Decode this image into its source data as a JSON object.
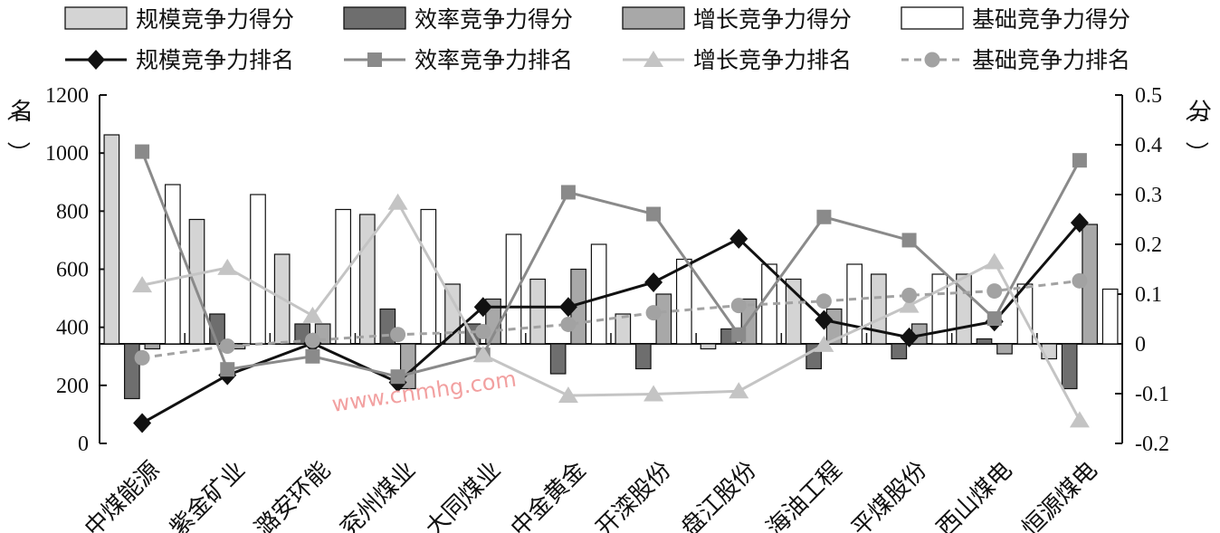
{
  "chart_data": {
    "type": "bar+line",
    "categories": [
      "中煤能源",
      "紫金矿业",
      "潞安环能",
      "兖州煤业",
      "大同煤业",
      "中金黄金",
      "开滦股份",
      "盘江股份",
      "海油工程",
      "平煤股份",
      "西山煤电",
      "恒源煤电"
    ],
    "bar_series": [
      {
        "name": "规模竞争力得分",
        "color": "#d4d4d4",
        "values": [
          0.42,
          0.25,
          0.18,
          0.26,
          0.12,
          0.13,
          0.06,
          -0.01,
          0.13,
          0.14,
          0.14,
          -0.03
        ]
      },
      {
        "name": "效率竞争力得分",
        "color": "#6e6e6e",
        "values": [
          -0.11,
          0.06,
          0.04,
          0.07,
          0.04,
          -0.06,
          -0.05,
          0.03,
          -0.05,
          -0.03,
          0.01,
          -0.09
        ]
      },
      {
        "name": "增长竞争力得分",
        "color": "#a8a8a8",
        "values": [
          -0.01,
          -0.01,
          0.04,
          -0.09,
          0.09,
          0.15,
          0.1,
          0.09,
          0.07,
          0.04,
          -0.02,
          0.24
        ]
      },
      {
        "name": "基础竞争力得分",
        "color": "#ffffff",
        "values": [
          0.32,
          0.3,
          0.27,
          0.27,
          0.22,
          0.2,
          0.17,
          0.16,
          0.16,
          0.14,
          0.12,
          0.11
        ]
      }
    ],
    "line_series": [
      {
        "name": "规模竞争力排名",
        "color": "#111111",
        "marker": "diamond",
        "dash": "",
        "values": [
          70,
          235,
          345,
          210,
          470,
          470,
          555,
          705,
          425,
          365,
          420,
          760
        ]
      },
      {
        "name": "效率竞争力排名",
        "color": "#8a8a8a",
        "marker": "square",
        "dash": "",
        "values": [
          1005,
          255,
          300,
          230,
          305,
          865,
          790,
          375,
          780,
          700,
          430,
          975
        ]
      },
      {
        "name": "增长竞争力排名",
        "color": "#c4c4c4",
        "marker": "triangle",
        "dash": "",
        "values": [
          545,
          605,
          440,
          830,
          305,
          165,
          170,
          180,
          340,
          475,
          625,
          80
        ]
      },
      {
        "name": "基础竞争力排名",
        "color": "#a2a2a2",
        "marker": "circle",
        "dash": "8,6",
        "values": [
          295,
          335,
          355,
          375,
          385,
          410,
          450,
          475,
          490,
          510,
          525,
          560
        ]
      }
    ],
    "y_left": {
      "label": "（名）",
      "min": 0,
      "max": 1200,
      "ticks": [
        0,
        200,
        400,
        600,
        800,
        1000,
        1200
      ]
    },
    "y_right": {
      "label": "（分）",
      "min": -0.2,
      "max": 0.5,
      "ticks": [
        -0.2,
        -0.1,
        0,
        0.1,
        0.2,
        0.3,
        0.4,
        0.5
      ]
    },
    "legend_position": "top",
    "grid": false
  },
  "watermark": "www.cnmhg.com"
}
